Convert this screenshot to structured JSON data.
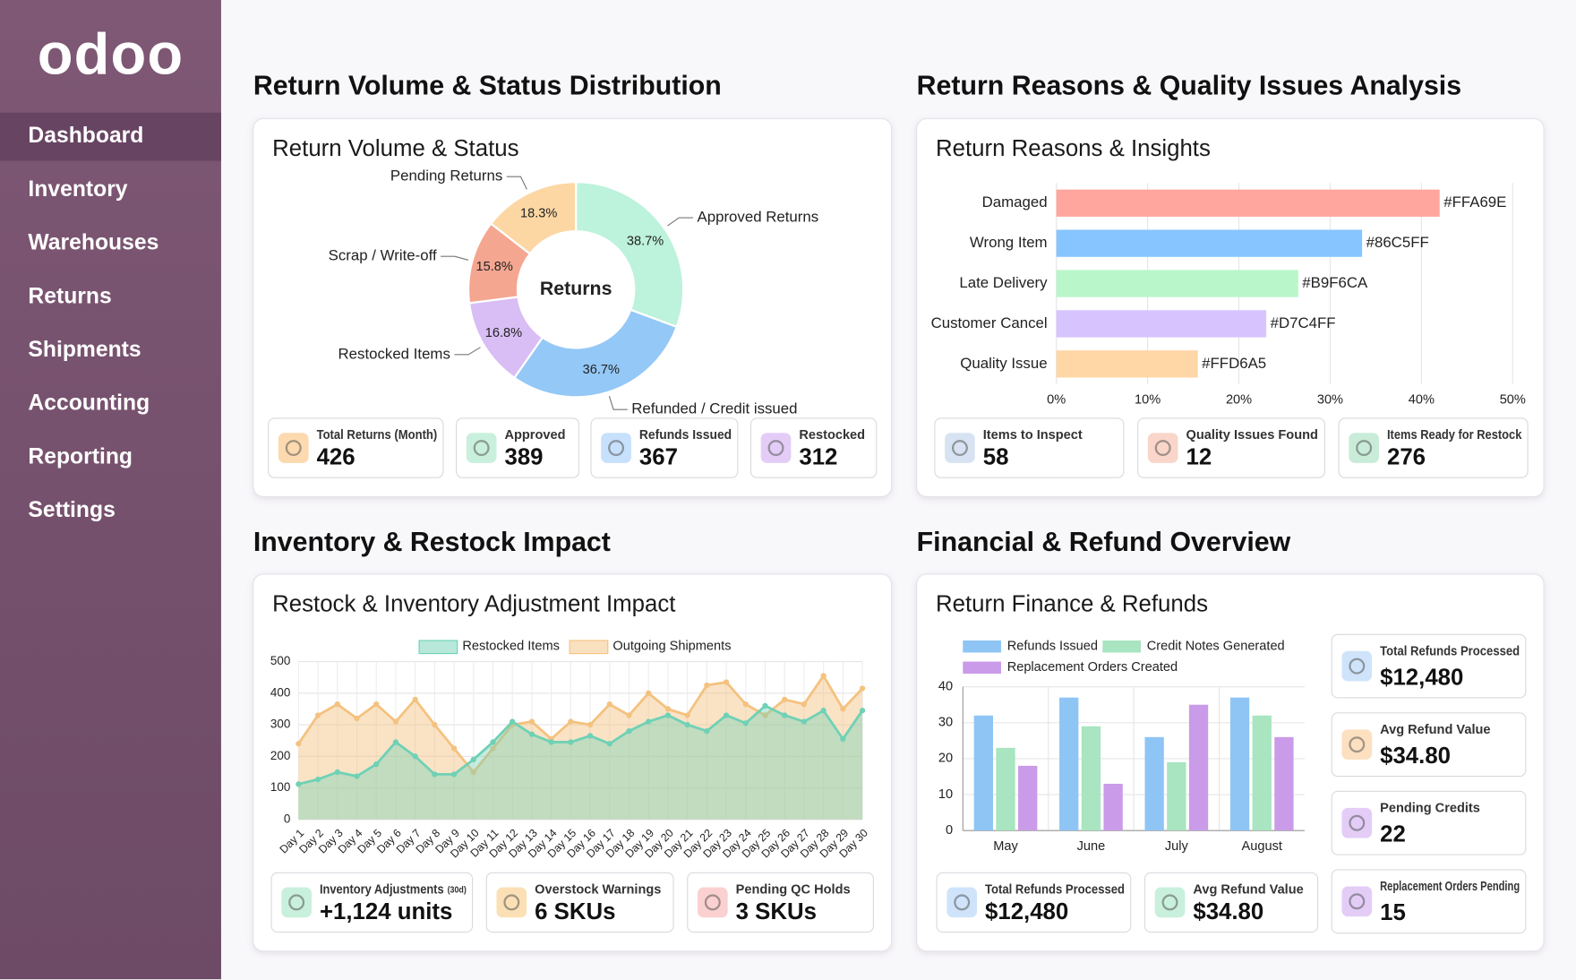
{
  "sidebar": {
    "logo": "odoo",
    "menu": [
      "Dashboard",
      "Inventory",
      "Warehouses",
      "Returns",
      "Shipments",
      "Accounting",
      "Reporting",
      "Settings"
    ],
    "active": 0
  },
  "panels": [
    {
      "heading": "Return Volume & Status Distribution",
      "title": "Return Volume & Status",
      "kpis": [
        {
          "label": "Total Returns (Month)",
          "value": "426",
          "color": "#fcd9ae"
        },
        {
          "label": "Approved",
          "value": "389",
          "color": "#c9f0dc"
        },
        {
          "label": "Refunds Issued",
          "value": "367",
          "color": "#c7e0fb"
        },
        {
          "label": "Restocked",
          "value": "312",
          "color": "#e3cdf7"
        }
      ]
    },
    {
      "heading": "Return Reasons & Quality Issues Analysis",
      "title": "Return Reasons & Insights",
      "kpis": [
        {
          "label": "Items to Inspect",
          "value": "58",
          "color": "#d7e3f2"
        },
        {
          "label": "Quality Issues Found",
          "value": "12",
          "color": "#f9d6c9"
        },
        {
          "label": "Items Ready for Restock",
          "value": "276",
          "color": "#c9ecd8"
        }
      ]
    },
    {
      "heading": "Inventory & Restock Impact",
      "title": "Restock & Inventory Adjustment Impact",
      "kpis": [
        {
          "label": "Inventory Adjustments",
          "note": "(30d)",
          "value": "+1,124 units",
          "color": "#c9f0dc"
        },
        {
          "label": "Overstock Warnings",
          "value": "6 SKUs",
          "color": "#fbe0b5"
        },
        {
          "label": "Pending QC Holds",
          "value": "3 SKUs",
          "color": "#fbd0d0"
        }
      ]
    },
    {
      "heading": "Financial & Refund Overview",
      "title": "Return Finance & Refunds",
      "kpis": [
        {
          "label": "Total Refunds Processed",
          "value": "$12,480",
          "color": "#cfe4fb"
        },
        {
          "label": "Avg Refund Value",
          "value": "$34.80",
          "color": "#fde0c0"
        },
        {
          "label": "Pending Credits",
          "value": "22",
          "color": "#e3cdf7"
        },
        {
          "label": "Total Refunds Processed",
          "value": "$12,480",
          "color": "#cfe4fb"
        },
        {
          "label": "Avg Refund Value",
          "value": "$34.80",
          "color": "#c9f0dc"
        },
        {
          "label": "Replacement Orders Pending",
          "value": "15",
          "color": "#e3cdf7"
        }
      ]
    }
  ],
  "chart_data": [
    {
      "type": "pie",
      "center_label": "Returns",
      "categories": [
        "Approved Returns",
        "Refunded / Credit issued",
        "Restocked Items",
        "Scrap / Write-off",
        "Pending Returns"
      ],
      "values": [
        38.7,
        36.7,
        16.8,
        15.8,
        18.3
      ],
      "value_labels": [
        "38.7%",
        "36.7%",
        "16.8%",
        "15.8%",
        "18.3%"
      ],
      "colors": [
        "#bdf2dc",
        "#94c8f6",
        "#d9bdf5",
        "#f4a690",
        "#fcd7a4"
      ]
    },
    {
      "type": "hbar",
      "categories": [
        "Damaged",
        "Wrong Item",
        "Late Delivery",
        "Customer Cancel",
        "Quality Issue"
      ],
      "values": [
        42,
        33.5,
        26.5,
        23,
        15.5
      ],
      "colors": [
        "#FFA69E",
        "#86C5FF",
        "#B9F6CA",
        "#D7C4FF",
        "#FFD6A5"
      ],
      "xlim": [
        0,
        50
      ],
      "xticks": [
        {
          "value": 0,
          "label": "0%"
        },
        {
          "value": 10,
          "label": "10%"
        },
        {
          "value": 20,
          "label": "20%"
        },
        {
          "value": 30,
          "label": "30%"
        },
        {
          "value": 40,
          "label": "40%"
        },
        {
          "value": 50,
          "label": "50%"
        }
      ],
      "grid": true
    },
    {
      "type": "area",
      "categories": [
        "Day 1",
        "Day 2",
        "Day 3",
        "Day 4",
        "Day 5",
        "Day 6",
        "Day 7",
        "Day 8",
        "Day 9",
        "Day 10",
        "Day 11",
        "Day 12",
        "Day 13",
        "Day 14",
        "Day 15",
        "Day 16",
        "Day 17",
        "Day 18",
        "Day 19",
        "Day 20",
        "Day 21",
        "Day 22",
        "Day 23",
        "Day 24",
        "Day 25",
        "Day 26",
        "Day 27",
        "Day 28",
        "Day 29",
        "Day 30"
      ],
      "series": [
        {
          "name": "Restocked Items",
          "color": "#6fd1b6",
          "values": [
            112,
            127,
            150,
            137,
            175,
            245,
            200,
            143,
            143,
            190,
            245,
            310,
            270,
            245,
            245,
            265,
            240,
            280,
            310,
            330,
            300,
            280,
            330,
            305,
            360,
            330,
            310,
            345,
            255,
            345
          ]
        },
        {
          "name": "Outgoing Shipments",
          "color": "#f4c27f",
          "values": [
            240,
            330,
            365,
            320,
            365,
            310,
            380,
            300,
            225,
            150,
            225,
            300,
            310,
            255,
            310,
            300,
            365,
            330,
            400,
            350,
            330,
            425,
            435,
            365,
            330,
            380,
            365,
            455,
            350,
            415
          ]
        }
      ],
      "ylim": [
        0,
        500
      ],
      "yticks": [
        0,
        100,
        200,
        300,
        400,
        500
      ],
      "grid": true
    },
    {
      "type": "grouped_bar",
      "categories": [
        "May",
        "June",
        "July",
        "August"
      ],
      "series": [
        {
          "name": "Refunds Issued",
          "color": "#8ec5f5",
          "values": [
            32,
            37,
            26,
            37
          ]
        },
        {
          "name": "Credit Notes Generated",
          "color": "#a8e5c0",
          "values": [
            23,
            29,
            19,
            32
          ]
        },
        {
          "name": "Replacement Orders Created",
          "color": "#c99be8",
          "values": [
            18,
            13,
            35,
            26
          ]
        }
      ],
      "ylim": [
        0,
        40
      ],
      "yticks": [
        0,
        10,
        20,
        30,
        40
      ],
      "grid": true
    }
  ]
}
